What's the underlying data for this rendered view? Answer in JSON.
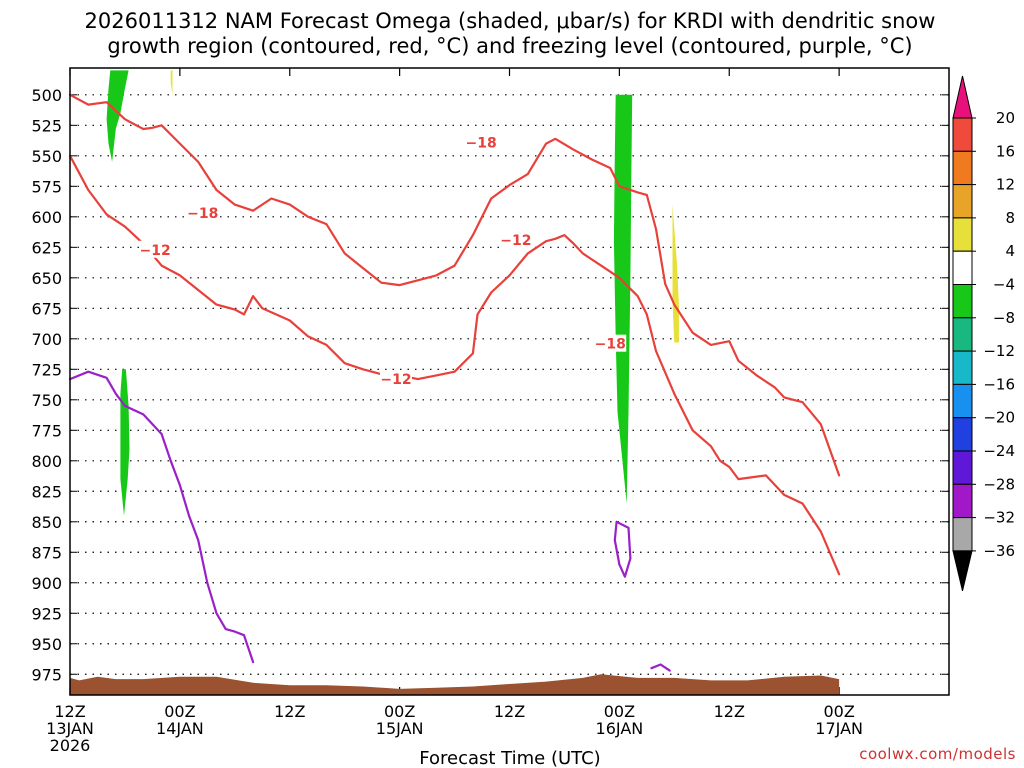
{
  "chart_data": {
    "type": "time-height contour",
    "title_line1": "2026011312 NAM Forecast Omega (shaded, μbar/s) for KRDI with dendritic snow",
    "title_line2": "growth region (contoured, red, °C) and freezing level (contoured, purple, °C)",
    "xlabel": "Forecast Time (UTC)",
    "ylabel": "Pressure (mb)",
    "credit": "coolwx.com/models",
    "x_range_hours": [
      0,
      96
    ],
    "y_range_mb": [
      478,
      992
    ],
    "x_ticks": [
      {
        "h": 0,
        "line1": "12Z",
        "line2": "13JAN",
        "line3": "2026"
      },
      {
        "h": 12,
        "line1": "00Z",
        "line2": "14JAN",
        "line3": ""
      },
      {
        "h": 24,
        "line1": "12Z",
        "line2": "",
        "line3": ""
      },
      {
        "h": 36,
        "line1": "00Z",
        "line2": "15JAN",
        "line3": ""
      },
      {
        "h": 48,
        "line1": "12Z",
        "line2": "",
        "line3": ""
      },
      {
        "h": 60,
        "line1": "00Z",
        "line2": "16JAN",
        "line3": ""
      },
      {
        "h": 72,
        "line1": "12Z",
        "line2": "",
        "line3": ""
      },
      {
        "h": 84,
        "line1": "00Z",
        "line2": "17JAN",
        "line3": ""
      }
    ],
    "y_ticks": [
      500,
      525,
      550,
      575,
      600,
      625,
      650,
      675,
      700,
      725,
      750,
      775,
      800,
      825,
      850,
      875,
      900,
      925,
      950,
      975
    ],
    "colorbar": {
      "tick_labels": [
        "20",
        "16",
        "12",
        "8",
        "4",
        "−4",
        "−8",
        "−12",
        "−16",
        "−20",
        "−24",
        "−28",
        "−32",
        "−36"
      ],
      "bins": [
        {
          "from": 20,
          "color": "#e8107a"
        },
        {
          "from": 16,
          "color": "#f04a3c"
        },
        {
          "from": 12,
          "color": "#f07a20"
        },
        {
          "from": 8,
          "color": "#e8a428"
        },
        {
          "from": 4,
          "color": "#e8e03a"
        },
        {
          "from": -4,
          "color": "#ffffff"
        },
        {
          "from": -8,
          "color": "#18c818"
        },
        {
          "from": -12,
          "color": "#18b880"
        },
        {
          "from": -16,
          "color": "#18b8c8"
        },
        {
          "from": -20,
          "color": "#1890f0"
        },
        {
          "from": -24,
          "color": "#2040e0"
        },
        {
          "from": -28,
          "color": "#6018d8"
        },
        {
          "from": -32,
          "color": "#a018c8"
        },
        {
          "from": -36,
          "color": "#a8a8a8"
        },
        {
          "from": -99,
          "color": "#000000"
        }
      ]
    },
    "series": [
      {
        "name": "-18C isotherm (upper)",
        "type": "line",
        "color": "#e8403a",
        "points": [
          [
            0,
            500
          ],
          [
            2,
            508
          ],
          [
            4,
            506
          ],
          [
            6,
            520
          ],
          [
            8,
            528
          ],
          [
            9,
            527
          ],
          [
            10,
            525
          ],
          [
            12,
            540
          ],
          [
            14,
            555
          ],
          [
            16,
            578
          ],
          [
            18,
            590
          ],
          [
            20,
            595
          ],
          [
            22,
            585
          ],
          [
            24,
            590
          ],
          [
            26,
            600
          ],
          [
            28,
            606
          ],
          [
            30,
            630
          ],
          [
            32,
            642
          ],
          [
            34,
            654
          ],
          [
            36,
            656
          ],
          [
            38,
            652
          ],
          [
            40,
            648
          ],
          [
            42,
            640
          ],
          [
            44,
            615
          ],
          [
            46,
            585
          ],
          [
            48,
            574
          ],
          [
            50,
            565
          ],
          [
            52,
            540
          ],
          [
            53,
            536
          ],
          [
            55,
            545
          ],
          [
            57,
            553
          ],
          [
            59,
            560
          ],
          [
            60,
            575
          ],
          [
            62,
            580
          ],
          [
            63,
            582
          ],
          [
            64,
            610
          ],
          [
            65,
            655
          ],
          [
            66,
            672
          ],
          [
            68,
            695
          ],
          [
            70,
            705
          ],
          [
            72,
            702
          ],
          [
            73,
            718
          ],
          [
            75,
            730
          ],
          [
            77,
            740
          ],
          [
            78,
            748
          ],
          [
            80,
            752
          ],
          [
            82,
            770
          ],
          [
            84,
            812
          ]
        ],
        "label": "−18",
        "labels_at": [
          [
            14.5,
            597
          ],
          [
            44.9,
            539
          ],
          [
            59,
            704
          ]
        ]
      },
      {
        "name": "-12C isotherm (lower)",
        "type": "line",
        "color": "#e8403a",
        "points": [
          [
            0,
            550
          ],
          [
            2,
            578
          ],
          [
            4,
            598
          ],
          [
            6,
            608
          ],
          [
            8,
            622
          ],
          [
            10,
            640
          ],
          [
            12,
            648
          ],
          [
            14,
            660
          ],
          [
            16,
            672
          ],
          [
            18,
            676
          ],
          [
            19,
            680
          ],
          [
            20,
            665
          ],
          [
            21,
            675
          ],
          [
            24,
            685
          ],
          [
            26,
            698
          ],
          [
            28,
            705
          ],
          [
            30,
            720
          ],
          [
            32,
            725
          ],
          [
            34,
            729
          ],
          [
            36,
            730
          ],
          [
            38,
            733
          ],
          [
            40,
            730
          ],
          [
            42,
            727
          ],
          [
            44,
            712
          ],
          [
            44.5,
            680
          ],
          [
            46,
            662
          ],
          [
            48,
            648
          ],
          [
            50,
            630
          ],
          [
            52,
            620
          ],
          [
            53,
            618
          ],
          [
            54,
            615
          ],
          [
            55,
            622
          ],
          [
            56,
            630
          ],
          [
            57,
            635
          ],
          [
            58,
            640
          ],
          [
            60,
            650
          ],
          [
            62,
            665
          ],
          [
            63,
            680
          ],
          [
            64,
            710
          ],
          [
            66,
            745
          ],
          [
            68,
            775
          ],
          [
            70,
            788
          ],
          [
            71,
            800
          ],
          [
            72,
            805
          ],
          [
            73,
            815
          ],
          [
            76,
            812
          ],
          [
            78,
            828
          ],
          [
            80,
            835
          ],
          [
            82,
            858
          ],
          [
            84,
            893
          ]
        ],
        "label": "−12",
        "labels_at": [
          [
            9.3,
            627
          ],
          [
            35.6,
            733
          ],
          [
            48.7,
            619
          ]
        ]
      },
      {
        "name": "Freezing level (0C)",
        "type": "line",
        "color": "#9a20c8",
        "points": [
          [
            0,
            733
          ],
          [
            2,
            727
          ],
          [
            4,
            732
          ],
          [
            5,
            745
          ],
          [
            6,
            755
          ],
          [
            8,
            762
          ],
          [
            10,
            778
          ],
          [
            11,
            800
          ],
          [
            12,
            820
          ],
          [
            13,
            845
          ],
          [
            14,
            865
          ],
          [
            15,
            900
          ],
          [
            16,
            925
          ],
          [
            17,
            938
          ],
          [
            18,
            940
          ],
          [
            19,
            943
          ],
          [
            20,
            965
          ]
        ]
      },
      {
        "name": "Freezing level (0C) closed contour",
        "type": "line",
        "color": "#9a20c8",
        "points": [
          [
            59.7,
            850
          ],
          [
            61.0,
            855
          ],
          [
            61.2,
            880
          ],
          [
            60.6,
            895
          ],
          [
            60.0,
            885
          ],
          [
            59.5,
            865
          ],
          [
            59.7,
            850
          ]
        ]
      },
      {
        "name": "Freezing level (0C) small contour",
        "type": "line",
        "color": "#9a20c8",
        "points": [
          [
            63.5,
            970
          ],
          [
            64.5,
            967
          ],
          [
            65.5,
            972
          ]
        ]
      }
    ],
    "omega_regions": [
      {
        "name": "omega-negative-1",
        "color": "#18c818",
        "points": [
          [
            4.4,
            480
          ],
          [
            6.4,
            480
          ],
          [
            6.0,
            495
          ],
          [
            5.5,
            515
          ],
          [
            5.0,
            528
          ],
          [
            4.6,
            555
          ],
          [
            4.2,
            540
          ],
          [
            4.0,
            520
          ],
          [
            4.2,
            495
          ]
        ]
      },
      {
        "name": "omega-negative-2",
        "color": "#18c818",
        "points": [
          [
            5.7,
            725
          ],
          [
            6.1,
            725
          ],
          [
            6.4,
            755
          ],
          [
            6.5,
            790
          ],
          [
            6.3,
            815
          ],
          [
            5.9,
            845
          ],
          [
            5.5,
            815
          ],
          [
            5.5,
            770
          ],
          [
            5.5,
            745
          ]
        ]
      },
      {
        "name": "omega-negative-3",
        "color": "#18c818",
        "points": [
          [
            59.6,
            500
          ],
          [
            61.4,
            500
          ],
          [
            61.3,
            570
          ],
          [
            61.2,
            650
          ],
          [
            61.0,
            760
          ],
          [
            60.8,
            835
          ],
          [
            60.2,
            790
          ],
          [
            59.8,
            760
          ],
          [
            59.6,
            700
          ],
          [
            59.4,
            620
          ],
          [
            59.5,
            550
          ]
        ]
      },
      {
        "name": "omega-positive-1",
        "color": "#e8e03a",
        "points": [
          [
            11.0,
            480
          ],
          [
            11.2,
            480
          ],
          [
            11.2,
            490
          ],
          [
            11.2,
            500
          ],
          [
            11.0,
            490
          ]
        ]
      },
      {
        "name": "omega-positive-2",
        "color": "#e8e03a",
        "points": [
          [
            65.8,
            590
          ],
          [
            66.3,
            640
          ],
          [
            66.5,
            672
          ],
          [
            66.5,
            703
          ],
          [
            66.0,
            703
          ],
          [
            65.8,
            670
          ],
          [
            65.8,
            635
          ]
        ]
      }
    ],
    "terrain": {
      "color": "#9a5230",
      "label": "surface (below ground)",
      "top_points": [
        [
          0,
          978
        ],
        [
          1,
          980
        ],
        [
          3,
          977
        ],
        [
          5,
          979
        ],
        [
          8,
          979
        ],
        [
          12,
          977
        ],
        [
          16,
          977
        ],
        [
          20,
          982
        ],
        [
          24,
          984
        ],
        [
          28,
          984
        ],
        [
          32,
          985
        ],
        [
          36,
          987
        ],
        [
          40,
          986
        ],
        [
          44,
          985
        ],
        [
          48,
          983
        ],
        [
          52,
          981
        ],
        [
          56,
          978
        ],
        [
          58,
          975
        ],
        [
          62,
          978
        ],
        [
          66,
          978
        ],
        [
          70,
          980
        ],
        [
          74,
          980
        ],
        [
          78,
          977
        ],
        [
          82,
          976
        ],
        [
          84,
          979
        ]
      ]
    }
  }
}
